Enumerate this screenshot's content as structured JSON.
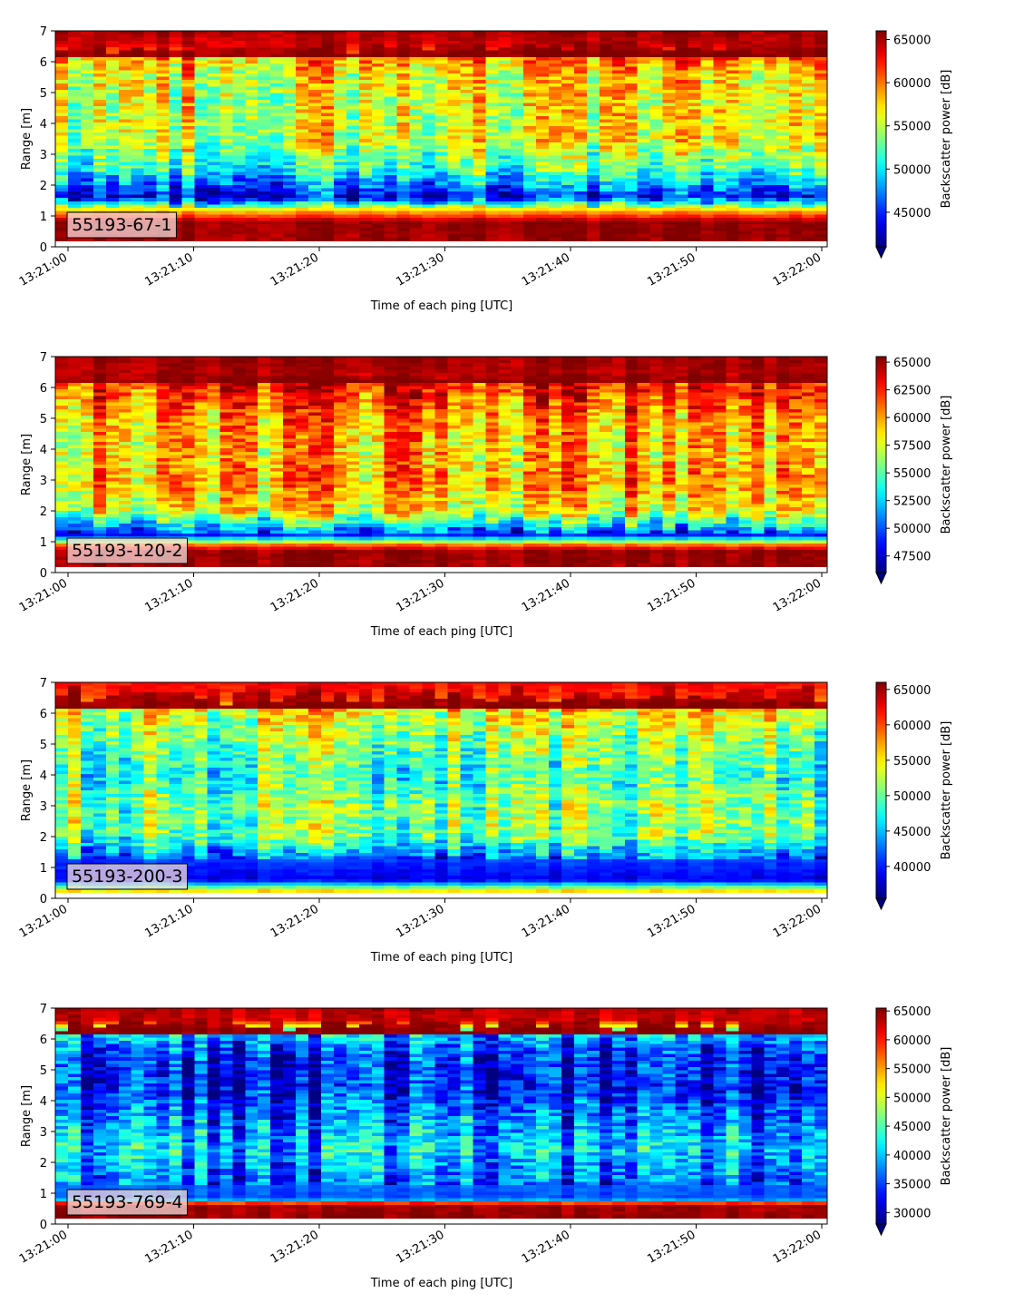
{
  "chart_data": [
    {
      "type": "heatmap",
      "label": "55193-67-1",
      "xlabel": "Time of each ping [UTC]",
      "ylabel": "Range [m]",
      "xticks": [
        "13:21:00",
        "13:21:10",
        "13:21:20",
        "13:21:30",
        "13:21:40",
        "13:21:50",
        "13:22:00"
      ],
      "yticks": [
        0,
        1,
        2,
        3,
        4,
        5,
        6,
        7
      ],
      "ylim": [
        0,
        7
      ],
      "colorbar": {
        "label": "Backscatter power [dB]",
        "min": 41000,
        "max": 66000,
        "ticks": [
          45000,
          50000,
          55000,
          60000,
          65000
        ],
        "extend": "min"
      },
      "profile": [
        {
          "z": 0.15,
          "v": 0.97
        },
        {
          "z": 0.8,
          "v": 0.98
        },
        {
          "z": 1.15,
          "v": 0.7
        },
        {
          "z": 1.6,
          "v": 0.12
        },
        {
          "z": 2.5,
          "v": 0.42
        },
        {
          "z": 3.5,
          "v": 0.6
        },
        {
          "z": 4.5,
          "v": 0.6
        },
        {
          "z": 5.5,
          "v": 0.62
        },
        {
          "z": 6.2,
          "v": 0.75
        },
        {
          "z": 6.6,
          "v": 0.92
        },
        {
          "z": 7.0,
          "v": 0.97
        }
      ]
    },
    {
      "type": "heatmap",
      "label": "55193-120-2",
      "xlabel": "Time of each ping [UTC]",
      "ylabel": "Range [m]",
      "xticks": [
        "13:21:00",
        "13:21:10",
        "13:21:20",
        "13:21:30",
        "13:21:40",
        "13:21:50",
        "13:22:00"
      ],
      "yticks": [
        0,
        1,
        2,
        3,
        4,
        5,
        6,
        7
      ],
      "ylim": [
        0,
        7
      ],
      "colorbar": {
        "label": "Backscatter power [dB]",
        "min": 46000,
        "max": 65500,
        "ticks": [
          47500,
          50000,
          52500,
          55000,
          57500,
          60000,
          62500,
          65000
        ],
        "extend": "min"
      },
      "profile": [
        {
          "z": 0.15,
          "v": 0.97
        },
        {
          "z": 0.7,
          "v": 0.98
        },
        {
          "z": 0.9,
          "v": 0.75
        },
        {
          "z": 1.2,
          "v": 0.15
        },
        {
          "z": 2.0,
          "v": 0.62
        },
        {
          "z": 3.0,
          "v": 0.72
        },
        {
          "z": 4.0,
          "v": 0.68
        },
        {
          "z": 5.0,
          "v": 0.72
        },
        {
          "z": 6.0,
          "v": 0.85
        },
        {
          "z": 6.5,
          "v": 0.95
        },
        {
          "z": 7.0,
          "v": 0.98
        }
      ]
    },
    {
      "type": "heatmap",
      "label": "55193-200-3",
      "xlabel": "Time of each ping [UTC]",
      "ylabel": "Range [m]",
      "xticks": [
        "13:21:00",
        "13:21:10",
        "13:21:20",
        "13:21:30",
        "13:21:40",
        "13:21:50",
        "13:22:00"
      ],
      "yticks": [
        0,
        1,
        2,
        3,
        4,
        5,
        6,
        7
      ],
      "ylim": [
        0,
        7
      ],
      "colorbar": {
        "label": "Backscatter power [dB]",
        "min": 35500,
        "max": 66000,
        "ticks": [
          40000,
          45000,
          50000,
          55000,
          60000,
          65000
        ],
        "extend": "min"
      },
      "profile": [
        {
          "z": 0.1,
          "v": 0.92
        },
        {
          "z": 0.3,
          "v": 0.55
        },
        {
          "z": 0.6,
          "v": 0.1
        },
        {
          "z": 1.2,
          "v": 0.18
        },
        {
          "z": 2.0,
          "v": 0.48
        },
        {
          "z": 3.0,
          "v": 0.5
        },
        {
          "z": 4.0,
          "v": 0.42
        },
        {
          "z": 5.0,
          "v": 0.5
        },
        {
          "z": 6.0,
          "v": 0.6
        },
        {
          "z": 6.5,
          "v": 0.82
        },
        {
          "z": 7.0,
          "v": 0.88
        }
      ]
    },
    {
      "type": "heatmap",
      "label": "55193-769-4",
      "xlabel": "Time of each ping [UTC]",
      "ylabel": "Range [m]",
      "xticks": [
        "13:21:00",
        "13:21:10",
        "13:21:20",
        "13:21:30",
        "13:21:40",
        "13:21:50",
        "13:22:00"
      ],
      "yticks": [
        0,
        1,
        2,
        3,
        4,
        5,
        6,
        7
      ],
      "ylim": [
        0,
        7
      ],
      "colorbar": {
        "label": "Backscatter power [dB]",
        "min": 28000,
        "max": 65500,
        "ticks": [
          30000,
          35000,
          40000,
          45000,
          50000,
          55000,
          60000,
          65000
        ],
        "extend": "min"
      },
      "profile": [
        {
          "z": 0.2,
          "v": 0.98
        },
        {
          "z": 0.65,
          "v": 0.96
        },
        {
          "z": 0.8,
          "v": 0.2
        },
        {
          "z": 1.5,
          "v": 0.22
        },
        {
          "z": 2.5,
          "v": 0.32
        },
        {
          "z": 3.5,
          "v": 0.22
        },
        {
          "z": 4.5,
          "v": 0.12
        },
        {
          "z": 5.5,
          "v": 0.15
        },
        {
          "z": 6.2,
          "v": 0.3
        },
        {
          "z": 6.6,
          "v": 0.9
        },
        {
          "z": 7.0,
          "v": 0.95
        }
      ]
    }
  ]
}
